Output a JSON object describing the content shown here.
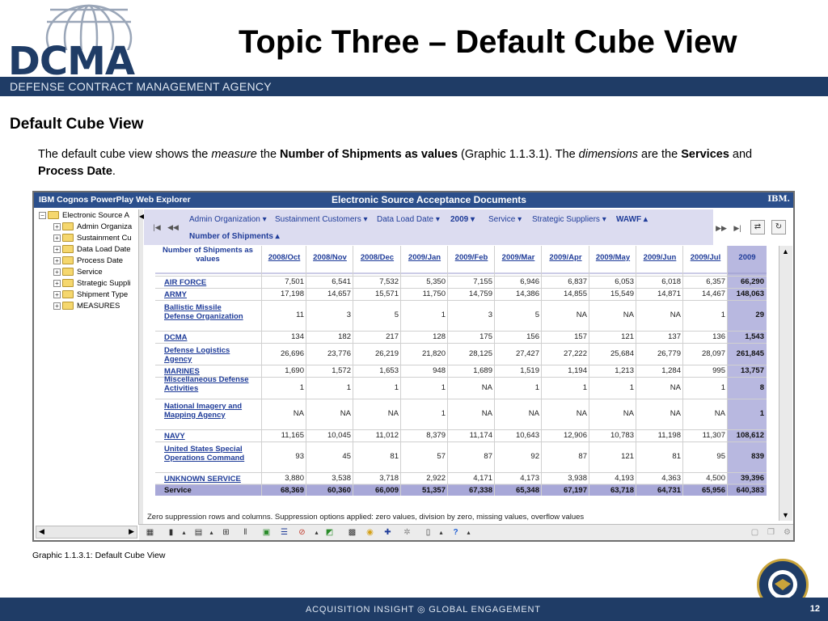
{
  "header": {
    "logo_text": "DCMA",
    "title": "Topic Three – Default Cube View",
    "agency": "DEFENSE CONTRACT MANAGEMENT AGENCY"
  },
  "section_heading": "Default Cube View",
  "intro": {
    "t1": "The default cube view shows the ",
    "t2": "measure",
    "t3": " the ",
    "t4": "Number of Shipments as values",
    "t5": " (Graphic 1.1.3.1). The ",
    "t6": "dimensions",
    "t7": " are the ",
    "t8": "Services",
    "t9": " and ",
    "t10": "Process Date",
    "t11": "."
  },
  "app": {
    "name": "IBM Cognos PowerPlay Web Explorer",
    "report_title": "Electronic Source Acceptance Documents",
    "vendor": "IBM.",
    "tree": [
      "Electronic Source A",
      "Admin Organiza",
      "Sustainment Cu",
      "Data Load Date",
      "Process Date",
      "Service",
      "Strategic Suppli",
      "Shipment Type",
      "MEASURES"
    ],
    "dims": {
      "admin": "Admin Organization",
      "sustainment": "Sustainment Customers",
      "data_load": "Data Load Date",
      "year": "2009",
      "service": "Service",
      "suppliers": "Strategic Suppliers",
      "wawf": "WAWF",
      "measure": "Number of Shipments"
    },
    "corner_label": "Number of Shipments as values",
    "columns": [
      "2008/Oct",
      "2008/Nov",
      "2008/Dec",
      "2009/Jan",
      "2009/Feb",
      "2009/Mar",
      "2009/Apr",
      "2009/May",
      "2009/Jun",
      "2009/Jul",
      "2009"
    ],
    "rows": [
      {
        "label": "AIR FORCE",
        "values": [
          "7,501",
          "6,541",
          "7,532",
          "5,350",
          "7,155",
          "6,946",
          "6,837",
          "6,053",
          "6,018",
          "6,357",
          "66,290"
        ]
      },
      {
        "label": "ARMY",
        "values": [
          "17,198",
          "14,657",
          "15,571",
          "11,750",
          "14,759",
          "14,386",
          "14,855",
          "15,549",
          "14,871",
          "14,467",
          "148,063"
        ]
      },
      {
        "label": "Ballistic Missile Defense Organization",
        "values": [
          "11",
          "3",
          "5",
          "1",
          "3",
          "5",
          "NA",
          "NA",
          "NA",
          "1",
          "29"
        ]
      },
      {
        "label": "DCMA",
        "values": [
          "134",
          "182",
          "217",
          "128",
          "175",
          "156",
          "157",
          "121",
          "137",
          "136",
          "1,543"
        ]
      },
      {
        "label": "Defense Logistics Agency",
        "values": [
          "26,696",
          "23,776",
          "26,219",
          "21,820",
          "28,125",
          "27,427",
          "27,222",
          "25,684",
          "26,779",
          "28,097",
          "261,845"
        ]
      },
      {
        "label": "MARINES",
        "values": [
          "1,690",
          "1,572",
          "1,653",
          "948",
          "1,689",
          "1,519",
          "1,194",
          "1,213",
          "1,284",
          "995",
          "13,757"
        ]
      },
      {
        "label": "Miscellaneous Defense Activities",
        "values": [
          "1",
          "1",
          "1",
          "1",
          "NA",
          "1",
          "1",
          "1",
          "NA",
          "1",
          "8"
        ]
      },
      {
        "label": "National Imagery and Mapping Agency",
        "values": [
          "NA",
          "NA",
          "NA",
          "1",
          "NA",
          "NA",
          "NA",
          "NA",
          "NA",
          "NA",
          "1"
        ]
      },
      {
        "label": "NAVY",
        "values": [
          "11,165",
          "10,045",
          "11,012",
          "8,379",
          "11,174",
          "10,643",
          "12,906",
          "10,783",
          "11,198",
          "11,307",
          "108,612"
        ]
      },
      {
        "label": "United States Special Operations Command",
        "values": [
          "93",
          "45",
          "81",
          "57",
          "87",
          "92",
          "87",
          "121",
          "81",
          "95",
          "839"
        ]
      },
      {
        "label": "UNKNOWN SERVICE",
        "values": [
          "3,880",
          "3,538",
          "3,718",
          "2,922",
          "4,171",
          "4,173",
          "3,938",
          "4,193",
          "4,363",
          "4,500",
          "39,396"
        ]
      }
    ],
    "total_row": {
      "label": "Service",
      "values": [
        "68,369",
        "60,360",
        "66,009",
        "51,357",
        "67,338",
        "65,348",
        "67,197",
        "63,718",
        "64,731",
        "65,956",
        "640,383"
      ]
    },
    "suppression_note": "Zero suppression rows and columns. Suppression options applied: zero values, division by zero, missing values, overflow values",
    "colors": {
      "titlebar": "#2b4f8c",
      "dimbar": "#dcdcf0",
      "total_col": "#b8b8e0",
      "total_row": "#a8a8d8",
      "link": "#1f3c99"
    }
  },
  "caption": "Graphic 1.1.3.1: Default Cube View",
  "footer": {
    "tagline": "ACQUISITION INSIGHT ◎ GLOBAL ENGAGEMENT",
    "page": "12"
  }
}
